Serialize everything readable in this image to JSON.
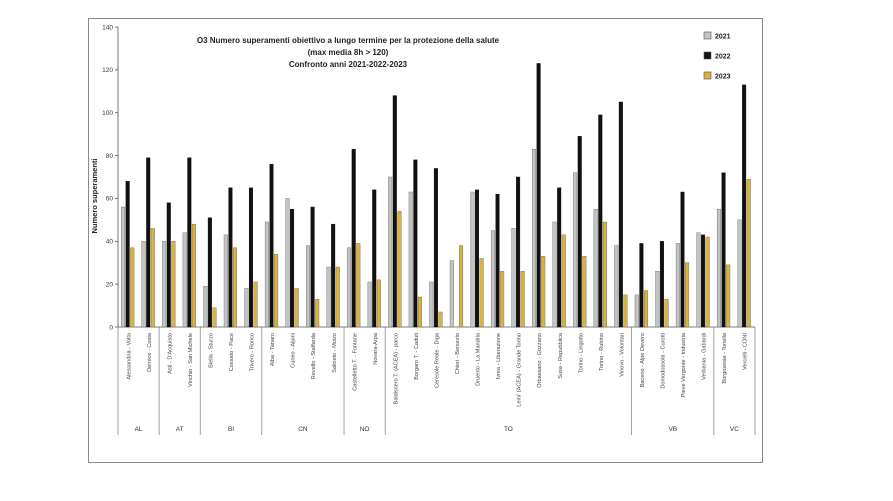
{
  "chart_data": {
    "type": "bar",
    "title_lines": [
      "O3 Numero superamenti obiettivo a lungo termine per la protezione della salute",
      "(max media 8h > 120)",
      "Confronto anni 2021-2022-2023"
    ],
    "ylabel": "Numero superamenti",
    "ylim": [
      0,
      140
    ],
    "yticks": [
      0,
      20,
      40,
      60,
      80,
      100,
      120,
      140
    ],
    "grid": false,
    "legend_position": "top-right",
    "categories": [
      "Alessandria - Volta",
      "Dernice - Costa",
      "Asti - D'Acquisto",
      "Vinchio - San Michele",
      "Biella - Sturzo",
      "Cossato - Pace",
      "Trivero - Ronco",
      "Alba - Tanaro",
      "Cuneo - Alpini",
      "Revello - Staffarda",
      "Saliceto - Moizo",
      "Castelletto T. - Fontane",
      "Novara-Arpa",
      "Baldissero T. (ACEA) - parco",
      "Borgaro T. - Caduti",
      "Ceresole Reale - Diga",
      "Chieri - Bersezio",
      "Druento - La Mandria",
      "Ivrea - Liberazione",
      "Leini' (ACEA) - Grande Torino",
      "Orbassano - Gozzano",
      "Susa - Repubblica",
      "Torino - Lingotto",
      "Torino - Rubino",
      "Vinovo - Volontari",
      "Baceno - Alpe Devero",
      "Domodossola - Curotti",
      "Pieve Vergonte - Industria",
      "Verbania - Gabardi",
      "Borgosesia - Tonella",
      "Vercelli - CONI"
    ],
    "groups": [
      {
        "name": "AL",
        "count": 2
      },
      {
        "name": "AT",
        "count": 2
      },
      {
        "name": "BI",
        "count": 3
      },
      {
        "name": "CN",
        "count": 4
      },
      {
        "name": "NO",
        "count": 2
      },
      {
        "name": "TO",
        "count": 12
      },
      {
        "name": "VB",
        "count": 4
      },
      {
        "name": "VC",
        "count": 2
      }
    ],
    "series": [
      {
        "name": "2021",
        "color": "#c4c4c4",
        "values": [
          56,
          40,
          40,
          44,
          19,
          43,
          18,
          49,
          60,
          38,
          28,
          37,
          21,
          70,
          63,
          21,
          31,
          63,
          45,
          46,
          83,
          49,
          72,
          55,
          38,
          15,
          26,
          39,
          44,
          55,
          50
        ]
      },
      {
        "name": "2022",
        "color": "#111111",
        "values": [
          68,
          79,
          58,
          79,
          51,
          65,
          65,
          76,
          55,
          56,
          48,
          83,
          64,
          108,
          78,
          74,
          0,
          64,
          62,
          70,
          123,
          65,
          89,
          99,
          105,
          39,
          40,
          63,
          43,
          72,
          113
        ]
      },
      {
        "name": "2023",
        "color": "#dcb23c",
        "values": [
          37,
          46,
          40,
          48,
          9,
          37,
          21,
          34,
          18,
          13,
          28,
          39,
          22,
          54,
          14,
          7,
          38,
          32,
          26,
          26,
          33,
          43,
          33,
          49,
          15,
          17,
          13,
          30,
          42,
          29,
          69
        ]
      }
    ]
  }
}
